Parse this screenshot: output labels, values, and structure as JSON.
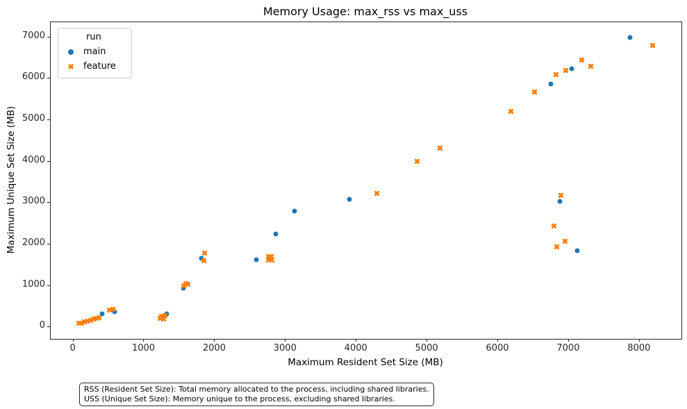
{
  "chart_data": {
    "type": "scatter",
    "title": "Memory Usage: max_rss vs max_uss",
    "xlabel": "Maximum Resident Set Size (MB)",
    "ylabel": "Maximum Unique Set Size (MB)",
    "xlim": [
      -310,
      8600
    ],
    "ylim": [
      -300,
      7350
    ],
    "x_ticks": [
      0,
      1000,
      2000,
      3000,
      4000,
      5000,
      6000,
      7000,
      8000
    ],
    "y_ticks": [
      0,
      1000,
      2000,
      3000,
      4000,
      5000,
      6000,
      7000
    ],
    "grid": false,
    "legend": {
      "title": "run",
      "position": "upper left",
      "entries": [
        {
          "label": "main",
          "marker": "circle",
          "color": "#1f77b4"
        },
        {
          "label": "feature",
          "marker": "x",
          "color": "#ff7f0e"
        }
      ]
    },
    "series": [
      {
        "name": "main",
        "marker": "circle",
        "color": "#1f77b4",
        "points": [
          [
            7870,
            6980
          ],
          [
            7050,
            6230
          ],
          [
            6760,
            5850
          ],
          [
            6880,
            3020
          ],
          [
            7130,
            1830
          ],
          [
            3910,
            3070
          ],
          [
            3130,
            2790
          ],
          [
            2870,
            2230
          ],
          [
            2590,
            1610
          ],
          [
            2780,
            1630
          ],
          [
            1820,
            1640
          ],
          [
            1560,
            930
          ],
          [
            1330,
            300
          ],
          [
            420,
            300
          ],
          [
            590,
            350
          ]
        ]
      },
      {
        "name": "feature",
        "marker": "x",
        "color": "#ff7f0e",
        "points": [
          [
            8190,
            6780
          ],
          [
            7320,
            6280
          ],
          [
            7190,
            6430
          ],
          [
            6970,
            6180
          ],
          [
            6830,
            6090
          ],
          [
            6520,
            5660
          ],
          [
            6190,
            5190
          ],
          [
            5190,
            4310
          ],
          [
            4870,
            3980
          ],
          [
            4300,
            3210
          ],
          [
            6900,
            3170
          ],
          [
            6800,
            2430
          ],
          [
            6960,
            2060
          ],
          [
            6840,
            1930
          ],
          [
            1860,
            1770
          ],
          [
            1850,
            1580
          ],
          [
            2770,
            1690
          ],
          [
            2810,
            1690
          ],
          [
            2770,
            1600
          ],
          [
            2820,
            1600
          ],
          [
            1600,
            1040
          ],
          [
            1630,
            1010
          ],
          [
            1570,
            980
          ],
          [
            1240,
            190
          ],
          [
            1260,
            240
          ],
          [
            1300,
            270
          ],
          [
            1280,
            170
          ],
          [
            90,
            70
          ],
          [
            130,
            85
          ],
          [
            170,
            115
          ],
          [
            210,
            135
          ],
          [
            250,
            150
          ],
          [
            290,
            185
          ],
          [
            330,
            200
          ],
          [
            370,
            220
          ],
          [
            520,
            400
          ],
          [
            570,
            420
          ]
        ]
      }
    ]
  },
  "footnote": {
    "line1": "RSS (Resident Set Size): Total memory allocated to the process, including shared libraries.",
    "line2": "USS (Unique Set Size): Memory unique to the process, excluding shared libraries."
  }
}
